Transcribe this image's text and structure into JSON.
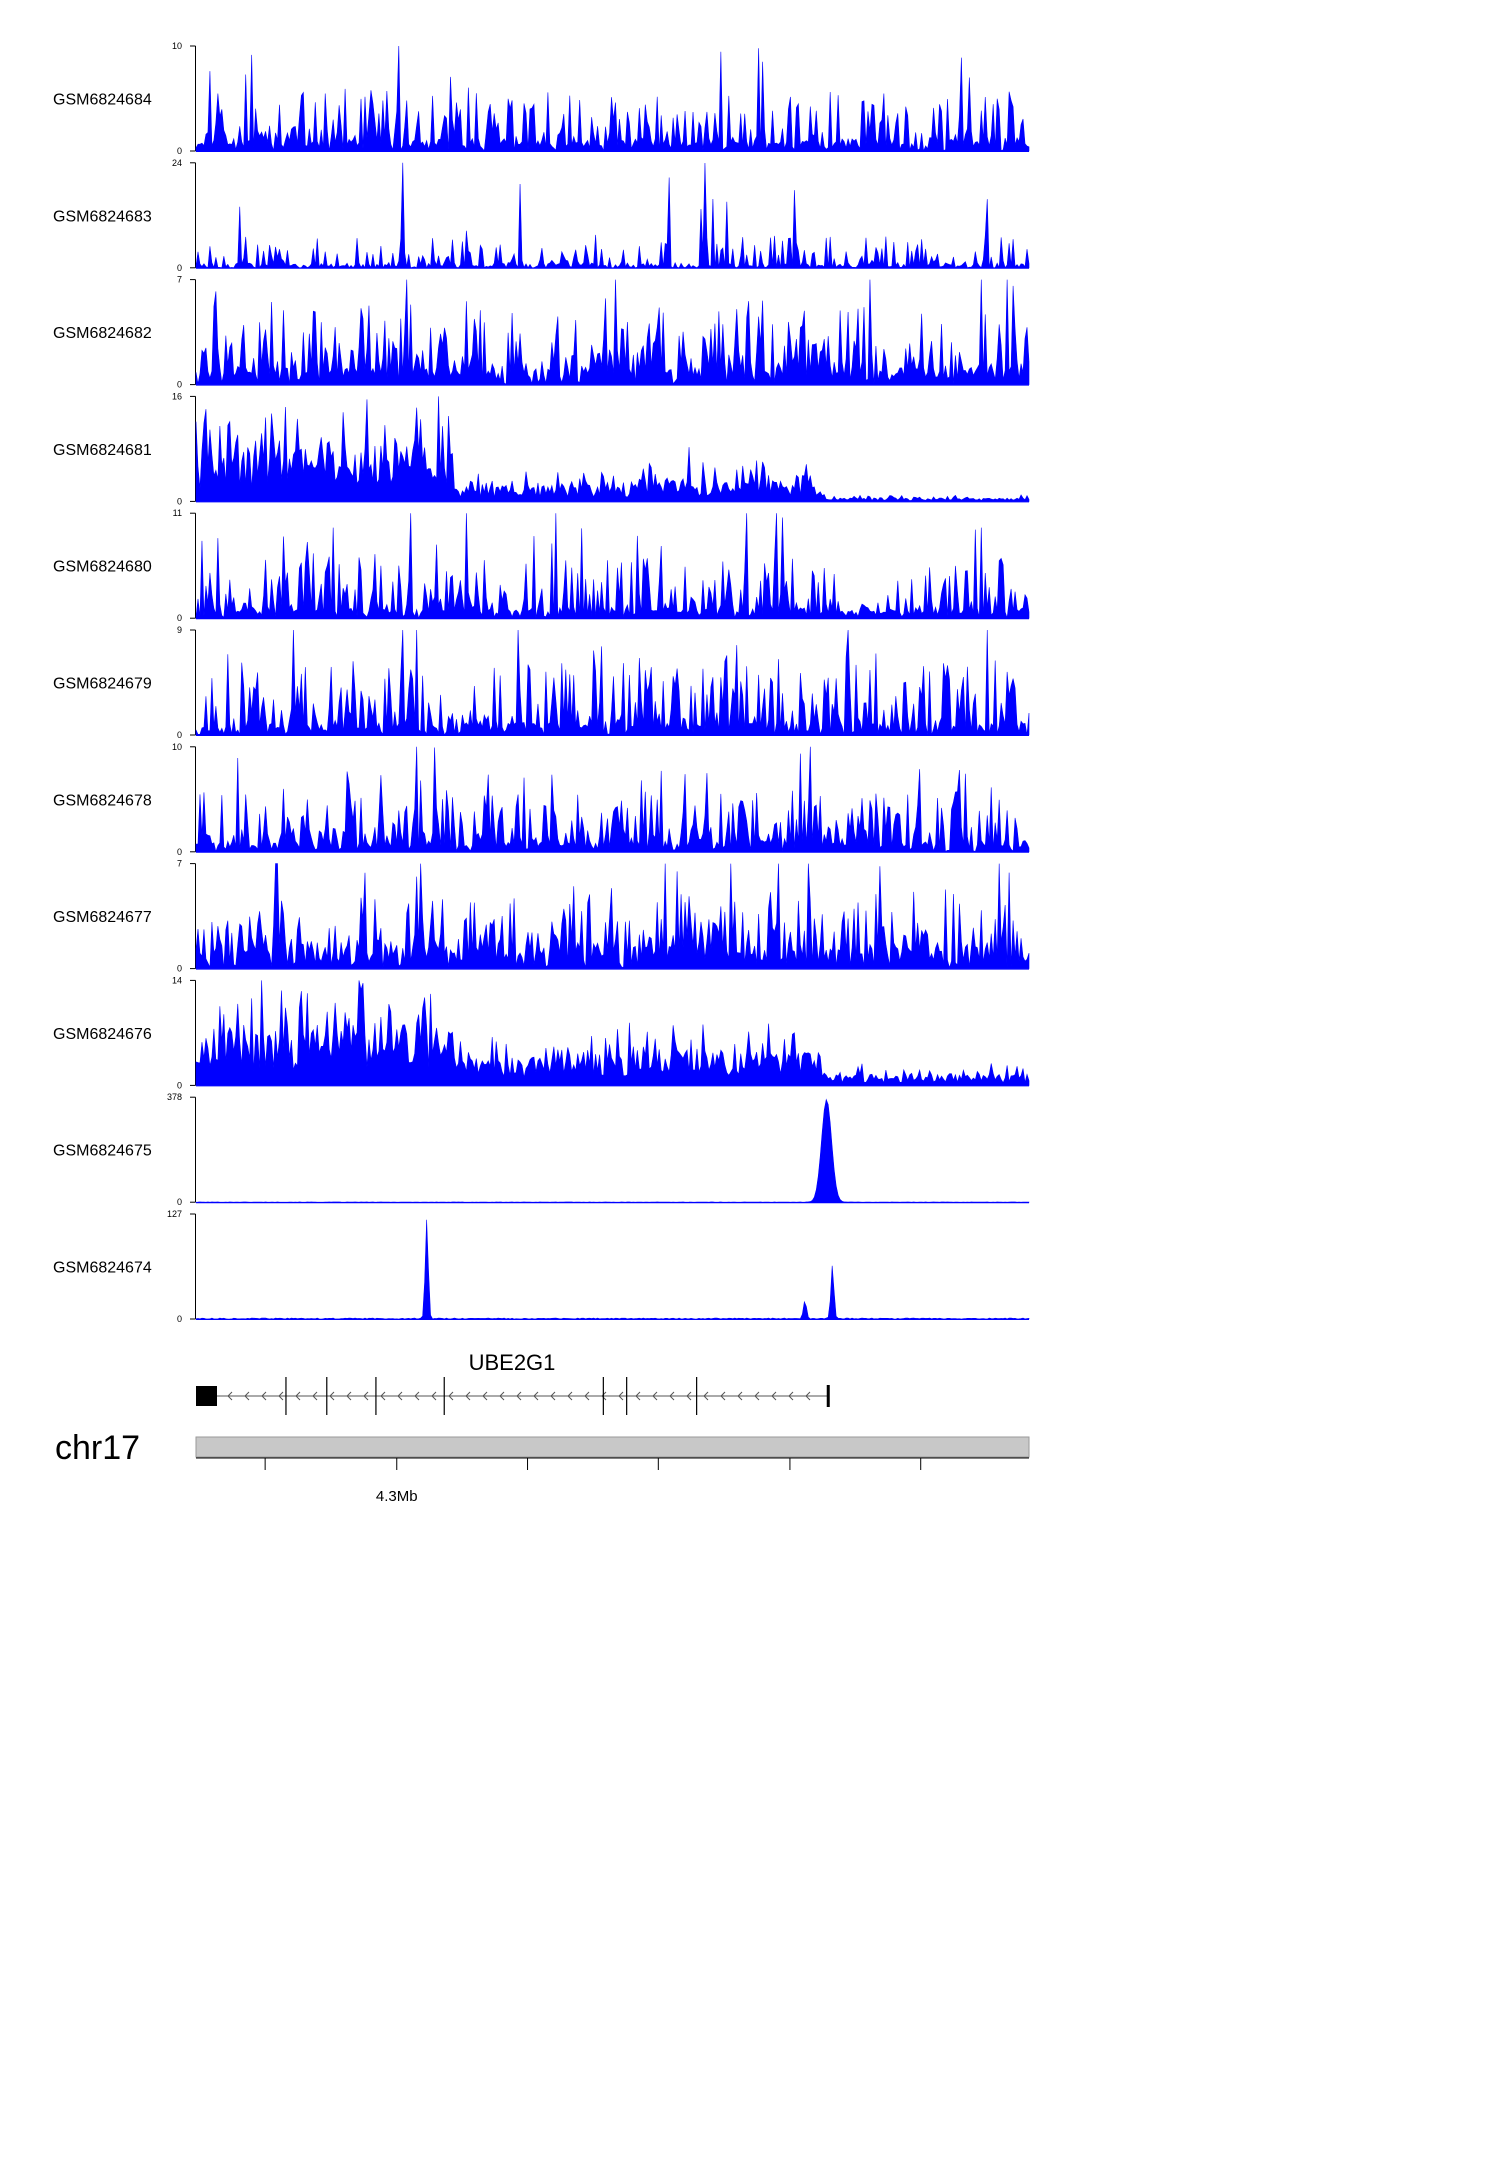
{
  "chart_data": {
    "type": "area",
    "title": "",
    "series_color": "#0000ff",
    "tracks": [
      {
        "name": "GSM6824684",
        "ymax": 10,
        "ymin": 0,
        "profile": "noise",
        "base": 0.9,
        "spread": 1.6,
        "seed": 11
      },
      {
        "name": "GSM6824683",
        "ymax": 24,
        "ymin": 0,
        "profile": "sparse",
        "base": 0.6,
        "spread": 5.5,
        "seed": 23
      },
      {
        "name": "GSM6824682",
        "ymax": 7,
        "ymin": 0,
        "profile": "noise",
        "base": 1.2,
        "spread": 1.5,
        "seed": 37
      },
      {
        "name": "GSM6824681",
        "ymax": 16,
        "ymin": 0,
        "profile": "domain",
        "seed": 41,
        "segments": [
          [
            0,
            0.31,
            5.5
          ],
          [
            0.31,
            0.52,
            1.6
          ],
          [
            0.52,
            0.75,
            2.2
          ],
          [
            0.75,
            1.0,
            0.35
          ]
        ]
      },
      {
        "name": "GSM6824680",
        "ymax": 11,
        "ymin": 0,
        "profile": "noise",
        "base": 0.9,
        "spread": 1.9,
        "seed": 53
      },
      {
        "name": "GSM6824679",
        "ymax": 9,
        "ymin": 0,
        "profile": "noise",
        "base": 1.0,
        "spread": 1.9,
        "seed": 67
      },
      {
        "name": "GSM6824678",
        "ymax": 10,
        "ymin": 0,
        "profile": "noise",
        "base": 0.9,
        "spread": 1.8,
        "seed": 71
      },
      {
        "name": "GSM6824677",
        "ymax": 7,
        "ymin": 0,
        "profile": "noise",
        "base": 1.5,
        "spread": 1.3,
        "seed": 83
      },
      {
        "name": "GSM6824676",
        "ymax": 14,
        "ymin": 0,
        "profile": "domain",
        "seed": 97,
        "segments": [
          [
            0,
            0.31,
            4.8
          ],
          [
            0.31,
            0.52,
            2.4
          ],
          [
            0.52,
            0.75,
            3.0
          ],
          [
            0.75,
            1.0,
            1.0
          ]
        ]
      },
      {
        "name": "GSM6824675",
        "ymax": 378,
        "ymin": 0,
        "profile": "peaks",
        "floor": 1.2,
        "seed": 101,
        "peaks": [
          [
            0.757,
            370,
            0.006
          ]
        ]
      },
      {
        "name": "GSM6824674",
        "ymax": 127,
        "ymin": 0,
        "profile": "peaks",
        "floor": 1.5,
        "seed": 113,
        "peaks": [
          [
            0.277,
            120,
            0.0018
          ],
          [
            0.731,
            22,
            0.0018
          ],
          [
            0.764,
            64,
            0.0018
          ]
        ]
      }
    ],
    "gene": {
      "name": "UBE2G1",
      "strand": "-",
      "exons": [
        0.011,
        0.108,
        0.157,
        0.216,
        0.298,
        0.489,
        0.517,
        0.601,
        0.759
      ]
    },
    "chromosome": "chr17",
    "axis": {
      "ticks": [
        0.083,
        0.241,
        0.398,
        0.555,
        0.713,
        0.87
      ],
      "tick_labels": [
        "",
        "4.3Mb",
        "",
        "",
        "",
        ""
      ]
    }
  }
}
